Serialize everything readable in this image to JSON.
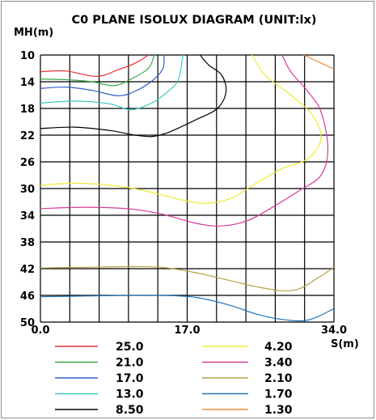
{
  "chart_data": {
    "type": "line",
    "title": "C0 PLANE ISOLUX DIAGRAM (UNIT:lx)",
    "ylabel": "MH(m)",
    "xlabel": "S(m)",
    "xlim": [
      0,
      34
    ],
    "ylim": [
      10,
      50
    ],
    "y_inverted": true,
    "x_ticks": [
      "0.0",
      "17.0",
      "34.0"
    ],
    "y_ticks": [
      "10",
      "14",
      "18",
      "22",
      "26",
      "30",
      "34",
      "38",
      "42",
      "46",
      "50"
    ],
    "grid": true,
    "legend_position": "bottom",
    "series": [
      {
        "name": "25.0",
        "color": "#e8303a",
        "points": [
          [
            0,
            12.5
          ],
          [
            3,
            12.4
          ],
          [
            6.5,
            13.2
          ],
          [
            9,
            12.2
          ],
          [
            11,
            11.2
          ],
          [
            12.5,
            10
          ]
        ]
      },
      {
        "name": "21.0",
        "color": "#3aa84a",
        "points": [
          [
            0,
            13.6
          ],
          [
            3,
            13.7
          ],
          [
            6,
            14
          ],
          [
            8.5,
            14.6
          ],
          [
            10.5,
            13.6
          ],
          [
            12.5,
            12
          ],
          [
            13.2,
            10
          ]
        ]
      },
      {
        "name": "17.0",
        "color": "#2f5fc8",
        "points": [
          [
            0,
            15
          ],
          [
            3,
            14.8
          ],
          [
            6,
            15.3
          ],
          [
            9,
            16.1
          ],
          [
            11,
            15.4
          ],
          [
            13,
            13.8
          ],
          [
            14.2,
            12
          ],
          [
            14.3,
            10
          ]
        ]
      },
      {
        "name": "13.0",
        "color": "#3ec7c0",
        "points": [
          [
            0,
            17.2
          ],
          [
            4,
            16.9
          ],
          [
            8,
            17.3
          ],
          [
            10.5,
            18.2
          ],
          [
            13,
            17.1
          ],
          [
            15,
            15.2
          ],
          [
            16,
            13.6
          ],
          [
            16.5,
            10
          ]
        ]
      },
      {
        "name": "8.50",
        "color": "#000000",
        "points": [
          [
            0,
            21
          ],
          [
            4,
            20.8
          ],
          [
            8,
            21.3
          ],
          [
            11,
            22
          ],
          [
            13,
            22.2
          ],
          [
            15,
            21.5
          ],
          [
            18,
            19.7
          ],
          [
            20.5,
            18
          ],
          [
            21.5,
            15.5
          ],
          [
            21,
            13
          ],
          [
            19.5,
            11.5
          ],
          [
            18.5,
            10
          ]
        ]
      },
      {
        "name": "4.20",
        "color": "#f0ea34",
        "points": [
          [
            0,
            29.5
          ],
          [
            4,
            29.2
          ],
          [
            8,
            29.5
          ],
          [
            12,
            30.3
          ],
          [
            16,
            31.6
          ],
          [
            19,
            32.2
          ],
          [
            22,
            31.5
          ],
          [
            25,
            29.2
          ],
          [
            28,
            27
          ],
          [
            31,
            25.5
          ],
          [
            32.5,
            22.5
          ],
          [
            31.5,
            19
          ],
          [
            29,
            16
          ],
          [
            26,
            13
          ],
          [
            24.5,
            10
          ]
        ]
      },
      {
        "name": "3.40",
        "color": "#d63a9a",
        "points": [
          [
            0,
            33
          ],
          [
            5,
            32.8
          ],
          [
            10,
            33
          ],
          [
            14,
            33.8
          ],
          [
            18,
            35.2
          ],
          [
            21,
            35.6
          ],
          [
            24,
            34.8
          ],
          [
            27,
            32.7
          ],
          [
            30,
            30.3
          ],
          [
            32.5,
            28
          ],
          [
            33.3,
            24
          ],
          [
            32.5,
            18.5
          ],
          [
            31,
            15.5
          ],
          [
            29,
            12.5
          ],
          [
            28,
            10
          ]
        ]
      },
      {
        "name": "2.10",
        "color": "#b8a042",
        "points": [
          [
            0,
            41.9
          ],
          [
            5,
            41.8
          ],
          [
            10,
            41.7
          ],
          [
            14,
            41.8
          ],
          [
            18,
            42.6
          ],
          [
            22,
            43.8
          ],
          [
            25,
            44.7
          ],
          [
            28,
            45.3
          ],
          [
            30,
            45
          ],
          [
            32,
            43.5
          ],
          [
            34,
            41.8
          ]
        ]
      },
      {
        "name": "1.70",
        "color": "#1e73b8",
        "points": [
          [
            0,
            46.2
          ],
          [
            5,
            46.1
          ],
          [
            10,
            46
          ],
          [
            14,
            46
          ],
          [
            18,
            46.3
          ],
          [
            22,
            47.5
          ],
          [
            25,
            48.8
          ],
          [
            28,
            49.6
          ],
          [
            31,
            49.7
          ],
          [
            34,
            48
          ]
        ]
      },
      {
        "name": "1.30",
        "color": "#f08a3a",
        "points": [
          [
            30.5,
            10
          ],
          [
            31.5,
            10.6
          ],
          [
            32.5,
            11.2
          ],
          [
            33.5,
            11.8
          ],
          [
            34,
            12.1
          ]
        ]
      }
    ]
  }
}
